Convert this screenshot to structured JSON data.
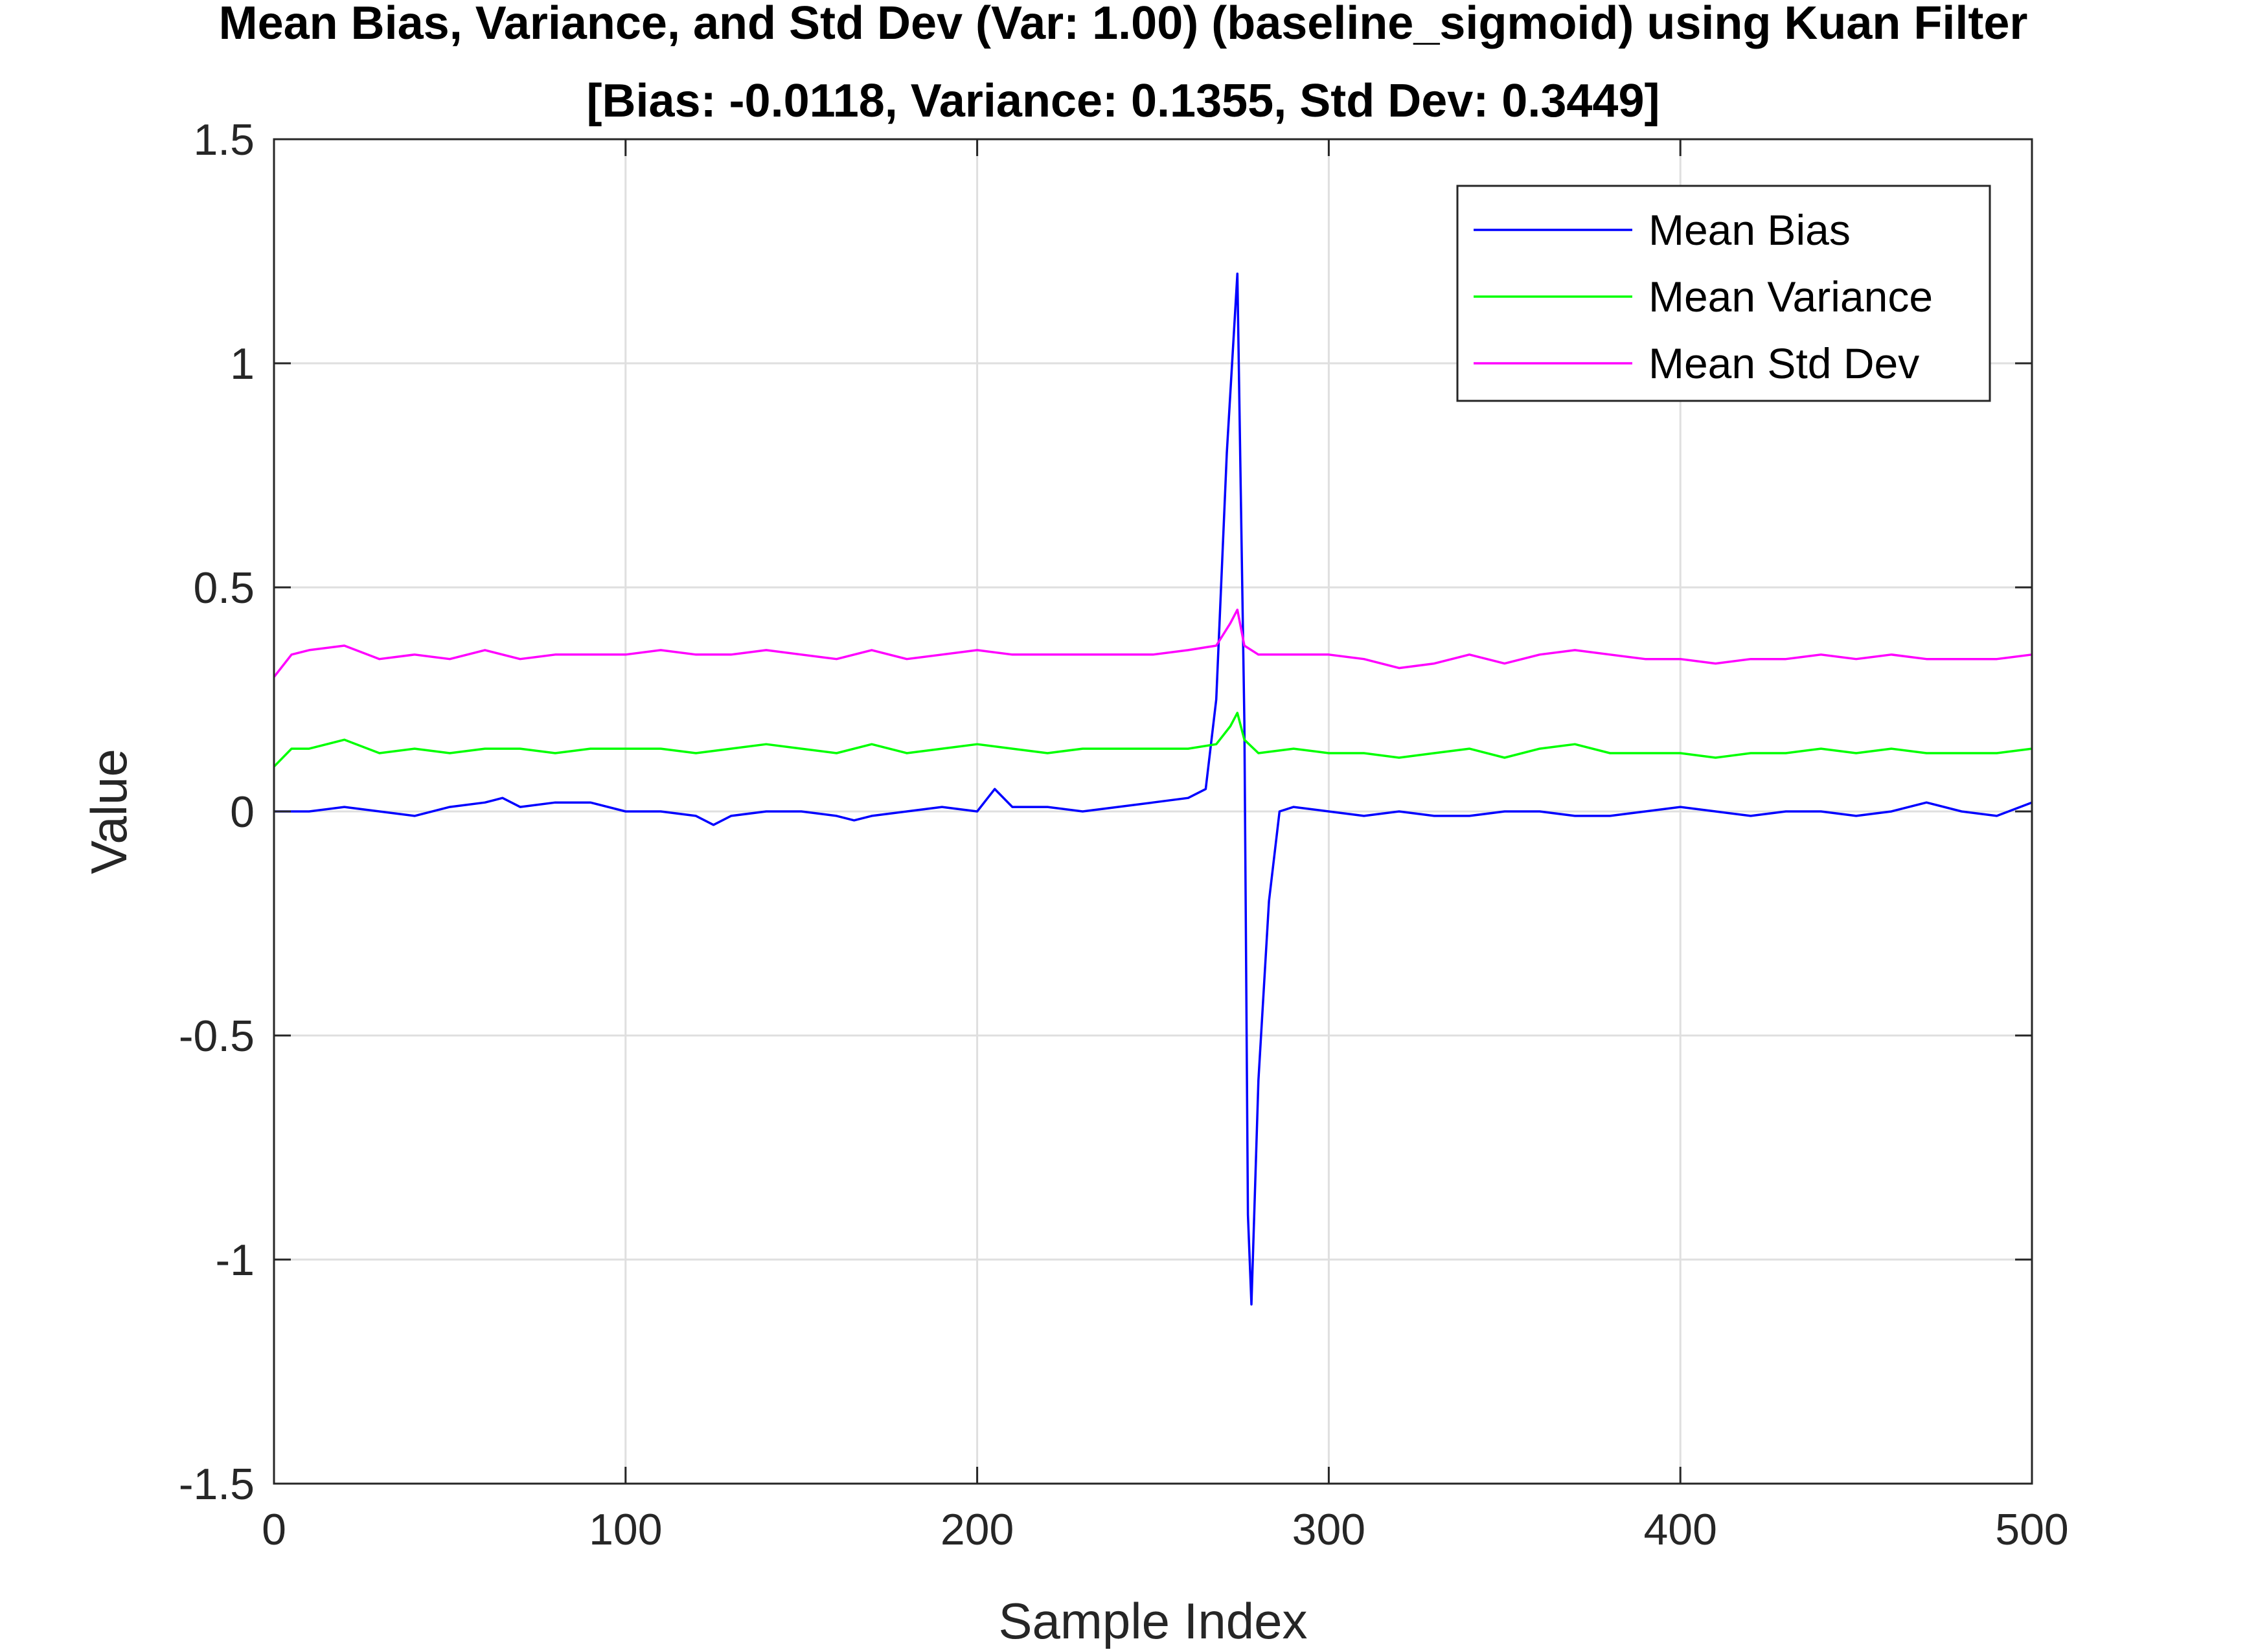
{
  "chart_data": {
    "type": "line",
    "title": "Mean Bias, Variance, and Std Dev (Var: 1.00) (baseline_sigmoid) using Kuan Filter",
    "subtitle": "[Bias: -0.0118, Variance: 0.1355, Std Dev: 0.3449]",
    "xlabel": "Sample Index",
    "ylabel": "Value",
    "xlim": [
      0,
      500
    ],
    "ylim": [
      -1.5,
      1.5
    ],
    "xticks": [
      "0",
      "100",
      "200",
      "300",
      "400",
      "500"
    ],
    "yticks": [
      "1.5",
      "1",
      "0.5",
      "0",
      "-0.5",
      "-1",
      "-1.5"
    ],
    "grid": true,
    "legend_position": "top-right",
    "series": [
      {
        "name": "Mean Bias",
        "color": "#0000ff",
        "points": [
          [
            0,
            0
          ],
          [
            10,
            0.0
          ],
          [
            20,
            0.01
          ],
          [
            30,
            0.0
          ],
          [
            40,
            -0.01
          ],
          [
            50,
            0.01
          ],
          [
            60,
            0.02
          ],
          [
            65,
            0.03
          ],
          [
            70,
            0.01
          ],
          [
            80,
            0.02
          ],
          [
            90,
            0.02
          ],
          [
            100,
            0.0
          ],
          [
            110,
            0.0
          ],
          [
            120,
            -0.01
          ],
          [
            125,
            -0.03
          ],
          [
            130,
            -0.01
          ],
          [
            140,
            0.0
          ],
          [
            150,
            0.0
          ],
          [
            160,
            -0.01
          ],
          [
            165,
            -0.02
          ],
          [
            170,
            -0.01
          ],
          [
            180,
            0.0
          ],
          [
            190,
            0.01
          ],
          [
            200,
            0.0
          ],
          [
            205,
            0.05
          ],
          [
            210,
            0.01
          ],
          [
            220,
            0.01
          ],
          [
            230,
            0.0
          ],
          [
            240,
            0.01
          ],
          [
            250,
            0.02
          ],
          [
            260,
            0.03
          ],
          [
            265,
            0.05
          ],
          [
            268,
            0.25
          ],
          [
            271,
            0.8
          ],
          [
            274,
            1.2
          ],
          [
            276,
            0.2
          ],
          [
            277,
            -0.9
          ],
          [
            278,
            -1.1
          ],
          [
            280,
            -0.6
          ],
          [
            283,
            -0.2
          ],
          [
            286,
            0.0
          ],
          [
            290,
            0.01
          ],
          [
            300,
            0.0
          ],
          [
            310,
            -0.01
          ],
          [
            320,
            0.0
          ],
          [
            330,
            -0.01
          ],
          [
            340,
            -0.01
          ],
          [
            350,
            0.0
          ],
          [
            360,
            0.0
          ],
          [
            370,
            -0.01
          ],
          [
            380,
            -0.01
          ],
          [
            390,
            0.0
          ],
          [
            400,
            0.01
          ],
          [
            410,
            0.0
          ],
          [
            420,
            -0.01
          ],
          [
            430,
            0.0
          ],
          [
            440,
            0.0
          ],
          [
            450,
            -0.01
          ],
          [
            460,
            0.0
          ],
          [
            470,
            0.02
          ],
          [
            480,
            0.0
          ],
          [
            490,
            -0.01
          ],
          [
            500,
            0.02
          ]
        ]
      },
      {
        "name": "Mean Variance",
        "color": "#00ff00",
        "points": [
          [
            0,
            0.1
          ],
          [
            5,
            0.14
          ],
          [
            10,
            0.14
          ],
          [
            20,
            0.16
          ],
          [
            30,
            0.13
          ],
          [
            40,
            0.14
          ],
          [
            50,
            0.13
          ],
          [
            60,
            0.14
          ],
          [
            70,
            0.14
          ],
          [
            80,
            0.13
          ],
          [
            90,
            0.14
          ],
          [
            100,
            0.14
          ],
          [
            110,
            0.14
          ],
          [
            120,
            0.13
          ],
          [
            130,
            0.14
          ],
          [
            140,
            0.15
          ],
          [
            150,
            0.14
          ],
          [
            160,
            0.13
          ],
          [
            170,
            0.15
          ],
          [
            180,
            0.13
          ],
          [
            190,
            0.14
          ],
          [
            200,
            0.15
          ],
          [
            210,
            0.14
          ],
          [
            220,
            0.13
          ],
          [
            230,
            0.14
          ],
          [
            240,
            0.14
          ],
          [
            250,
            0.14
          ],
          [
            260,
            0.14
          ],
          [
            268,
            0.15
          ],
          [
            272,
            0.19
          ],
          [
            274,
            0.22
          ],
          [
            276,
            0.16
          ],
          [
            280,
            0.13
          ],
          [
            290,
            0.14
          ],
          [
            300,
            0.13
          ],
          [
            310,
            0.13
          ],
          [
            320,
            0.12
          ],
          [
            330,
            0.13
          ],
          [
            340,
            0.14
          ],
          [
            350,
            0.12
          ],
          [
            360,
            0.14
          ],
          [
            370,
            0.15
          ],
          [
            380,
            0.13
          ],
          [
            390,
            0.13
          ],
          [
            400,
            0.13
          ],
          [
            410,
            0.12
          ],
          [
            420,
            0.13
          ],
          [
            430,
            0.13
          ],
          [
            440,
            0.14
          ],
          [
            450,
            0.13
          ],
          [
            460,
            0.14
          ],
          [
            470,
            0.13
          ],
          [
            480,
            0.13
          ],
          [
            490,
            0.13
          ],
          [
            500,
            0.14
          ]
        ]
      },
      {
        "name": "Mean Std Dev",
        "color": "#ff00ff",
        "points": [
          [
            0,
            0.3
          ],
          [
            5,
            0.35
          ],
          [
            10,
            0.36
          ],
          [
            20,
            0.37
          ],
          [
            30,
            0.34
          ],
          [
            40,
            0.35
          ],
          [
            50,
            0.34
          ],
          [
            60,
            0.36
          ],
          [
            70,
            0.34
          ],
          [
            80,
            0.35
          ],
          [
            90,
            0.35
          ],
          [
            100,
            0.35
          ],
          [
            110,
            0.36
          ],
          [
            120,
            0.35
          ],
          [
            130,
            0.35
          ],
          [
            140,
            0.36
          ],
          [
            150,
            0.35
          ],
          [
            160,
            0.34
          ],
          [
            170,
            0.36
          ],
          [
            180,
            0.34
          ],
          [
            190,
            0.35
          ],
          [
            200,
            0.36
          ],
          [
            210,
            0.35
          ],
          [
            220,
            0.35
          ],
          [
            230,
            0.35
          ],
          [
            240,
            0.35
          ],
          [
            250,
            0.35
          ],
          [
            260,
            0.36
          ],
          [
            268,
            0.37
          ],
          [
            272,
            0.42
          ],
          [
            274,
            0.45
          ],
          [
            276,
            0.37
          ],
          [
            280,
            0.35
          ],
          [
            290,
            0.35
          ],
          [
            300,
            0.35
          ],
          [
            310,
            0.34
          ],
          [
            320,
            0.32
          ],
          [
            330,
            0.33
          ],
          [
            340,
            0.35
          ],
          [
            350,
            0.33
          ],
          [
            360,
            0.35
          ],
          [
            370,
            0.36
          ],
          [
            380,
            0.35
          ],
          [
            390,
            0.34
          ],
          [
            400,
            0.34
          ],
          [
            410,
            0.33
          ],
          [
            420,
            0.34
          ],
          [
            430,
            0.34
          ],
          [
            440,
            0.35
          ],
          [
            450,
            0.34
          ],
          [
            460,
            0.35
          ],
          [
            470,
            0.34
          ],
          [
            480,
            0.34
          ],
          [
            490,
            0.34
          ],
          [
            500,
            0.35
          ]
        ]
      }
    ]
  }
}
